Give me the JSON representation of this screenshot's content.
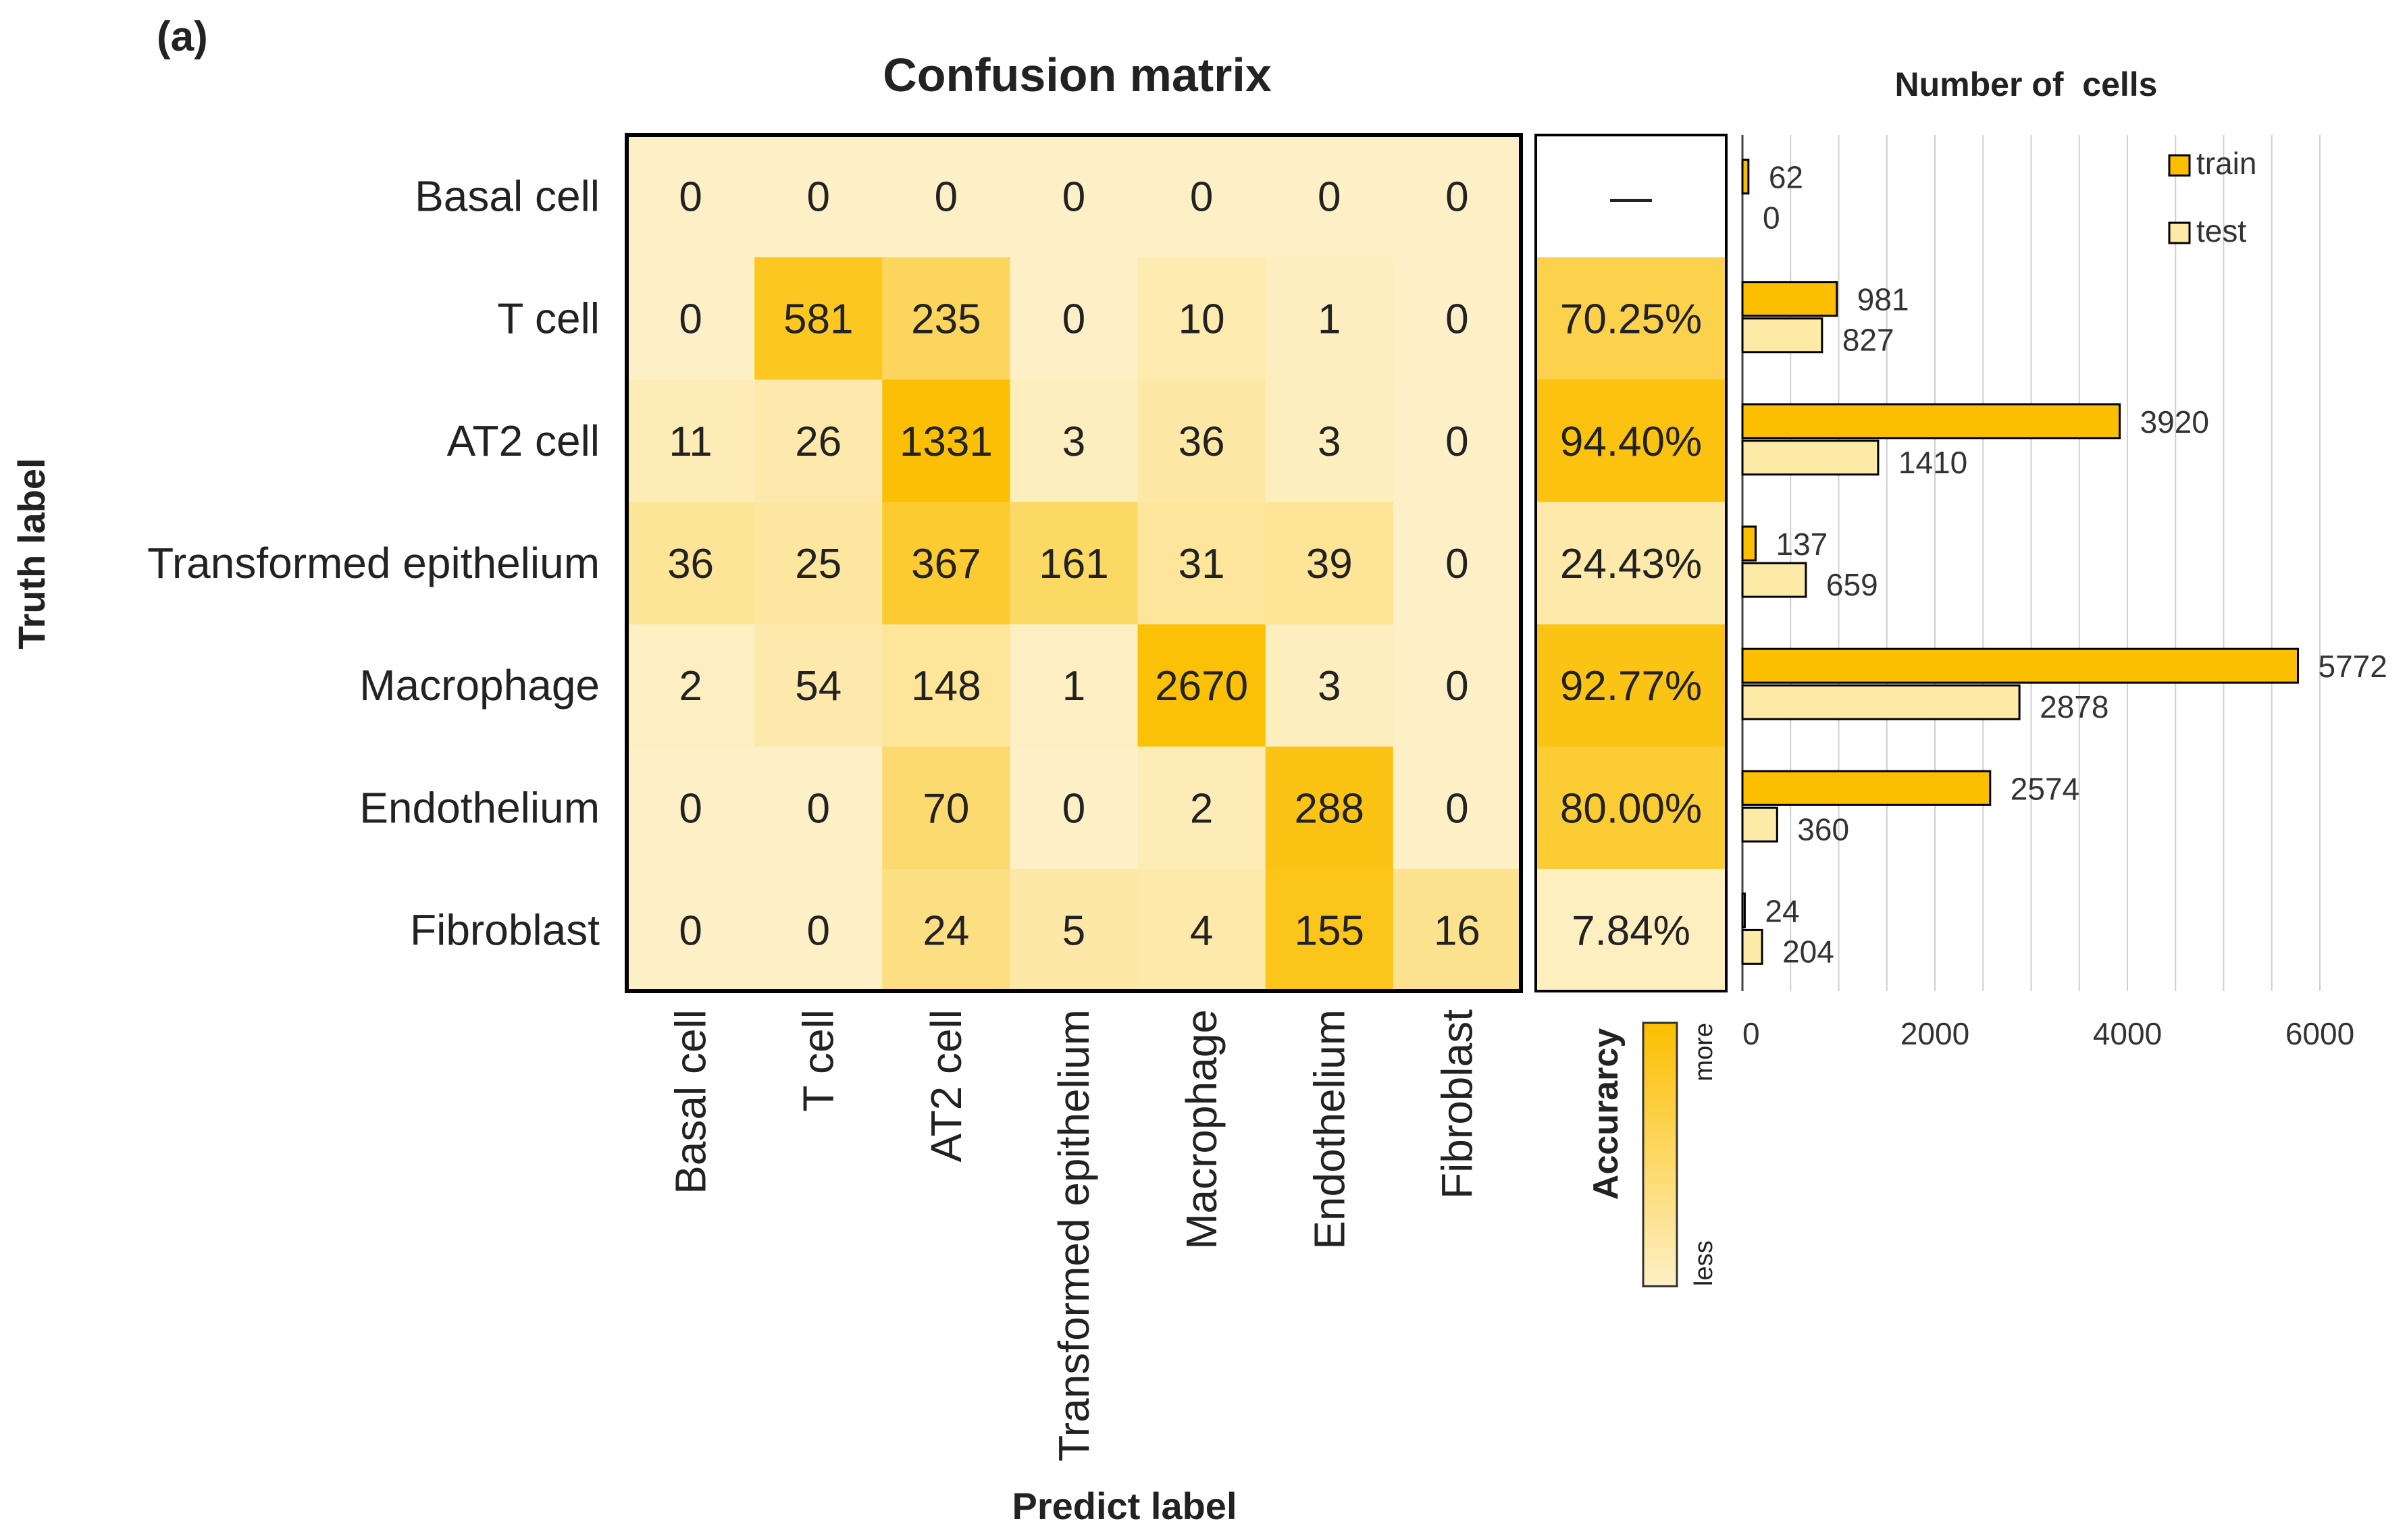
{
  "panel_label": "(a)",
  "chart_data": [
    {
      "type": "heatmap",
      "title": "Confusion matrix",
      "ylabel": "Truth label",
      "xlabel": "Predict label",
      "row_labels": [
        "Basal cell",
        "T cell",
        "AT2 cell",
        "Transformed epithelium",
        "Macrophage",
        "Endothelium",
        "Fibroblast"
      ],
      "col_labels": [
        "Basal cell",
        "T cell",
        "AT2 cell",
        "Transformed epithelium",
        "Macrophage",
        "Endothelium",
        "Fibroblast"
      ],
      "values": [
        [
          0,
          0,
          0,
          0,
          0,
          0,
          0
        ],
        [
          0,
          581,
          235,
          0,
          10,
          1,
          0
        ],
        [
          11,
          26,
          1331,
          3,
          36,
          3,
          0
        ],
        [
          36,
          25,
          367,
          161,
          31,
          39,
          0
        ],
        [
          2,
          54,
          148,
          1,
          2670,
          3,
          0
        ],
        [
          0,
          0,
          70,
          0,
          2,
          288,
          0
        ],
        [
          0,
          0,
          24,
          5,
          4,
          155,
          16
        ]
      ],
      "color_low": "#fdf0c6",
      "color_high": "#fbbf00"
    },
    {
      "type": "table",
      "title": "Accurarcy",
      "values": [
        "—",
        "70.25%",
        "94.40%",
        "24.43%",
        "92.77%",
        "80.00%",
        "7.84%"
      ],
      "numeric": [
        null,
        70.25,
        94.4,
        24.43,
        92.77,
        80.0,
        7.84
      ],
      "colorbar": {
        "high_label": "more",
        "low_label": "less"
      }
    },
    {
      "type": "bar",
      "orientation": "horizontal",
      "title": "Number of  cells",
      "categories": [
        "Basal cell",
        "T cell",
        "AT2 cell",
        "Transformed epithelium",
        "Macrophage",
        "Endothelium",
        "Fibroblast"
      ],
      "series": [
        {
          "name": "train",
          "values": [
            62,
            981,
            3920,
            137,
            5772,
            2574,
            24
          ],
          "color": "#fbbf00"
        },
        {
          "name": "test",
          "values": [
            0,
            827,
            1410,
            659,
            2878,
            360,
            204
          ],
          "color": "#fdeaa6"
        }
      ],
      "xlim": [
        0,
        6000
      ],
      "xticks": [
        0,
        2000,
        4000,
        6000
      ],
      "legend": "top-right"
    }
  ]
}
